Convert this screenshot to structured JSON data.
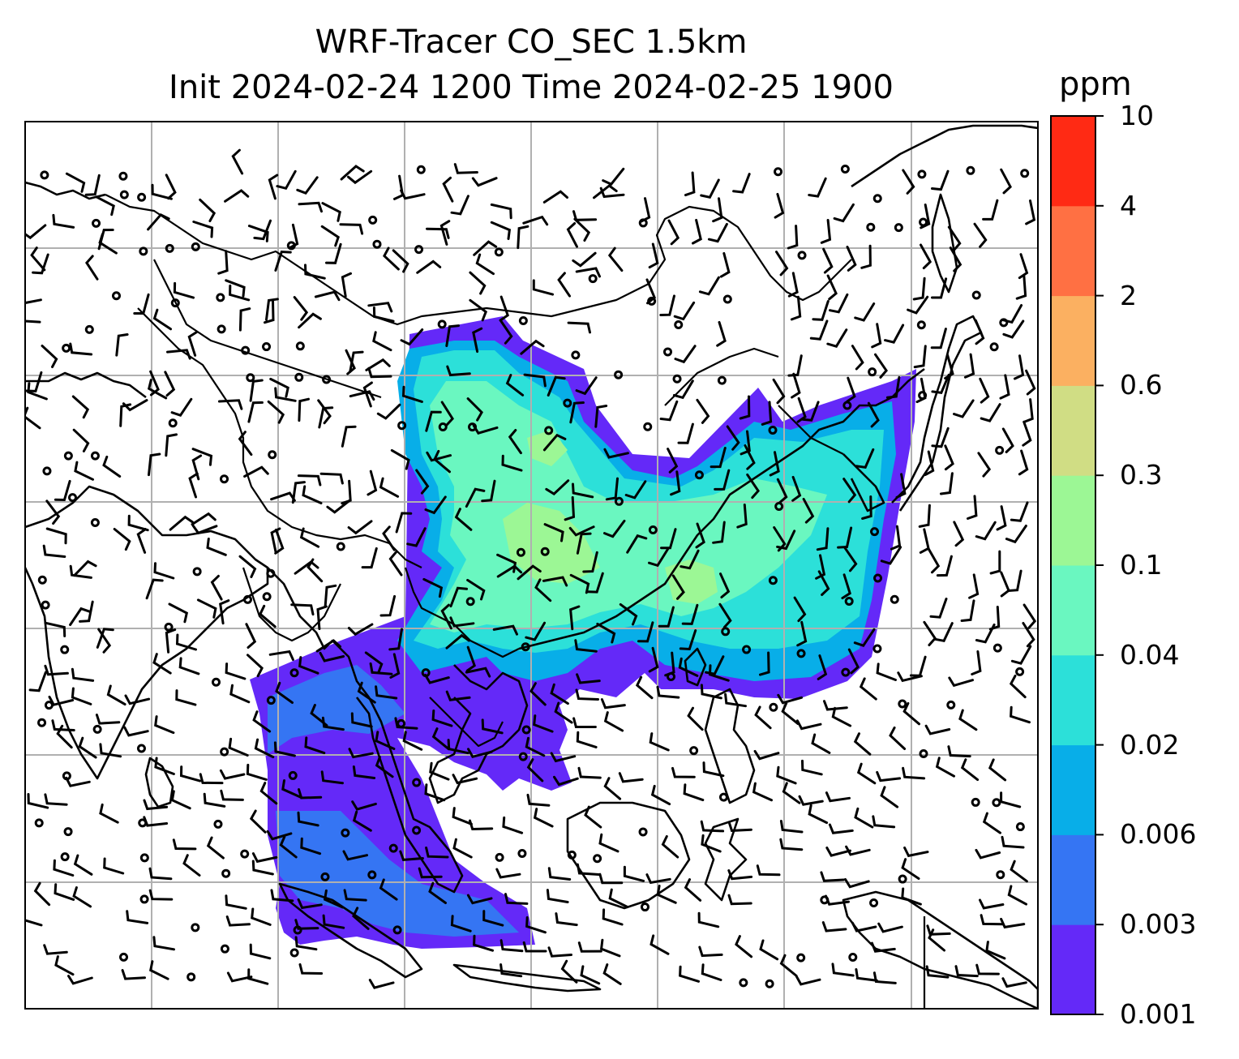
{
  "title": {
    "line1": "WRF-Tracer CO_SEC 1.5km",
    "line2": "Init 2024-02-24 1200 Time 2024-02-25 1900"
  },
  "colorbar": {
    "unit": "ppm",
    "levels": [
      "0.001",
      "0.003",
      "0.006",
      "0.02",
      "0.04",
      "0.1",
      "0.3",
      "0.6",
      "2",
      "4",
      "10"
    ],
    "colors": [
      "#6429f8",
      "#3575f3",
      "#08aee8",
      "#2ce0d9",
      "#6af7c0",
      "#9cf795",
      "#d0dd84",
      "#fbb061",
      "#ff7043",
      "#ff2a14"
    ]
  },
  "map": {
    "gridlines": true,
    "features": [
      "coastlines",
      "country-borders",
      "wind-barbs",
      "calm-circles"
    ]
  }
}
